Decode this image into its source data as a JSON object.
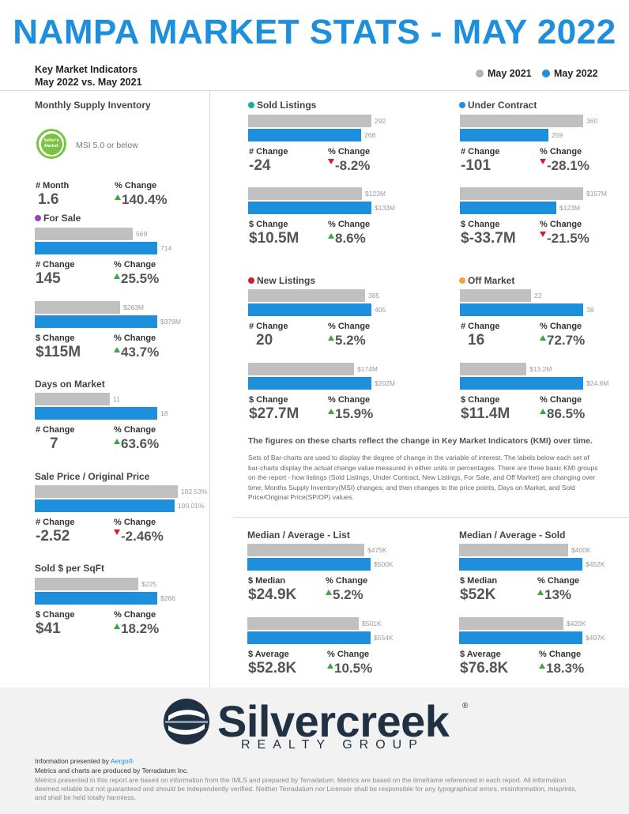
{
  "title": "NAMPA MARKET STATS - MAY 2022",
  "header": {
    "kmi_title": "Key Market Indicators",
    "kmi_subtitle": "May 2022 vs. May 2021",
    "legend": [
      {
        "label": "May 2021",
        "color": "#b3b3b3"
      },
      {
        "label": "May 2022",
        "color": "#1e8fdd"
      }
    ]
  },
  "left": {
    "msi": {
      "title": "Monthly Supply Inventory",
      "badge_text": "Seller's Market",
      "badge_note": "MSI 5.0 or below",
      "change_label": "# Month",
      "change_value": "1.6",
      "pct_label": "% Change",
      "pct_value": "140.4%"
    },
    "for_sale": {
      "title": "For Sale",
      "dot_color": "#9b3fc9",
      "count": {
        "v2021": 569,
        "v2022": 714,
        "label2021": "569",
        "label2022": "714",
        "change_label": "# Change",
        "change_value": "145",
        "pct_label": "% Change",
        "pct_value": "25.5%"
      },
      "dollar": {
        "v2021": 263,
        "v2022": 379,
        "label2021": "$263M",
        "label2022": "$379M",
        "change_label": "$ Change",
        "change_value": "$115M",
        "pct_label": "% Change",
        "pct_value": "43.7%"
      }
    },
    "dom": {
      "title": "Days on Market",
      "v2021": 11,
      "v2022": 18,
      "label2021": "11",
      "label2022": "18",
      "change_label": "# Change",
      "change_value": "7",
      "pct_label": "% Change",
      "pct_value": "63.6%"
    },
    "spop": {
      "title": "Sale Price / Original Price",
      "v2021": 102.53,
      "v2022": 100.01,
      "label2021": "102.53%",
      "label2022": "100.01%",
      "change_label": "# Change",
      "change_value": "-2.52",
      "pct_label": "% Change",
      "pct_value": "-2.46%"
    },
    "sqft": {
      "title": "Sold $ per SqFt",
      "v2021": 225,
      "v2022": 266,
      "label2021": "$225",
      "label2022": "$266",
      "change_label": "$ Change",
      "change_value": "$41",
      "pct_label": "% Change",
      "pct_value": "18.2%"
    }
  },
  "right": {
    "sold": {
      "title": "Sold Listings",
      "dot_color": "#1aa89a",
      "count": {
        "v2021": 292,
        "v2022": 268,
        "label2021": "292",
        "label2022": "268",
        "change_label": "# Change",
        "change_value": "-24",
        "pct_label": "% Change",
        "pct_value": "-8.2%"
      },
      "dollar": {
        "v2021": 123,
        "v2022": 133,
        "label2021": "$123M",
        "label2022": "$133M",
        "change_label": "$ Change",
        "change_value": "$10.5M",
        "pct_label": "% Change",
        "pct_value": "8.6%"
      }
    },
    "contract": {
      "title": "Under Contract",
      "dot_color": "#1e8fdd",
      "count": {
        "v2021": 360,
        "v2022": 259,
        "label2021": "360",
        "label2022": "259",
        "change_label": "# Change",
        "change_value": "-101",
        "pct_label": "% Change",
        "pct_value": "-28.1%"
      },
      "dollar": {
        "v2021": 157,
        "v2022": 123,
        "label2021": "$157M",
        "label2022": "$123M",
        "change_label": "$ Change",
        "change_value": "$-33.7M",
        "pct_label": "% Change",
        "pct_value": "-21.5%"
      }
    },
    "new": {
      "title": "New Listings",
      "dot_color": "#d81b2c",
      "count": {
        "v2021": 385,
        "v2022": 405,
        "label2021": "385",
        "label2022": "405",
        "change_label": "# Change",
        "change_value": "20",
        "pct_label": "% Change",
        "pct_value": "5.2%"
      },
      "dollar": {
        "v2021": 174,
        "v2022": 202,
        "label2021": "$174M",
        "label2022": "$202M",
        "change_label": "$ Change",
        "change_value": "$27.7M",
        "pct_label": "% Change",
        "pct_value": "15.9%"
      }
    },
    "off": {
      "title": "Off Market",
      "dot_color": "#f2a33a",
      "count": {
        "v2021": 22,
        "v2022": 38,
        "label2021": "22",
        "label2022": "38",
        "change_label": "# Change",
        "change_value": "16",
        "pct_label": "% Change",
        "pct_value": "72.7%"
      },
      "dollar": {
        "v2021": 13.2,
        "v2022": 24.6,
        "label2021": "$13.2M",
        "label2022": "$24.6M",
        "change_label": "$ Change",
        "change_value": "$11.4M",
        "pct_label": "% Change",
        "pct_value": "86.5%"
      }
    }
  },
  "note": {
    "headline": "The figures on these charts reflect the change in Key Market Indicators (KMI) over time.",
    "body": "Sets of Bar-charts are used to display the degree of change in the variable of interest. The labels below each set of bar-charts display the actual change value measured in either units or percentages. There are three basic KMI groups on the report - how listings (Sold Listings, Under Contract, New Listings, For Sale, and Off Market) are changing over time; Months Supply Inventory(MSI) changes; and then changes to the price points, Days on Market, and Sold Price/Original Price(SP/OP) values."
  },
  "medians": {
    "list": {
      "title": "Median / Average - List",
      "median": {
        "v2021": 475,
        "v2022": 500,
        "label2021": "$475K",
        "label2022": "$500K",
        "change_label": "$ Median",
        "change_value": "$24.9K",
        "pct_label": "% Change",
        "pct_value": "5.2%"
      },
      "average": {
        "v2021": 501,
        "v2022": 554,
        "label2021": "$501K",
        "label2022": "$554K",
        "change_label": "$ Average",
        "change_value": "$52.8K",
        "pct_label": "% Change",
        "pct_value": "10.5%"
      }
    },
    "sold": {
      "title": "Median / Average - Sold",
      "median": {
        "v2021": 400,
        "v2022": 452,
        "label2021": "$400K",
        "label2022": "$452K",
        "change_label": "$ Median",
        "change_value": "$52K",
        "pct_label": "% Change",
        "pct_value": "13%"
      },
      "average": {
        "v2021": 420,
        "v2022": 497,
        "label2021": "$420K",
        "label2022": "$497K",
        "change_label": "$ Average",
        "change_value": "$76.8K",
        "pct_label": "% Change",
        "pct_value": "18.3%"
      }
    }
  },
  "footer": {
    "brand": "Silvercreek",
    "brand_mark": "®",
    "brand_sub": "REALTY GROUP",
    "presented_prefix": "Information presented by ",
    "presented_by": "Aergo®",
    "produced_by": "Metrics and charts are produced by Terradatum Inc.",
    "disclaimer": "Metrics presented in this report are based on information from the IMLS and prepared by Terradatum. Metrics are based on the timeframe referenced in each report. All information deemed reliable but not guaranteed and should be independently verified. Neither Terradatum nor Licensor shall be responsible for any typographical errors, misinformation, misprints, and shall be held totally harmless."
  }
}
